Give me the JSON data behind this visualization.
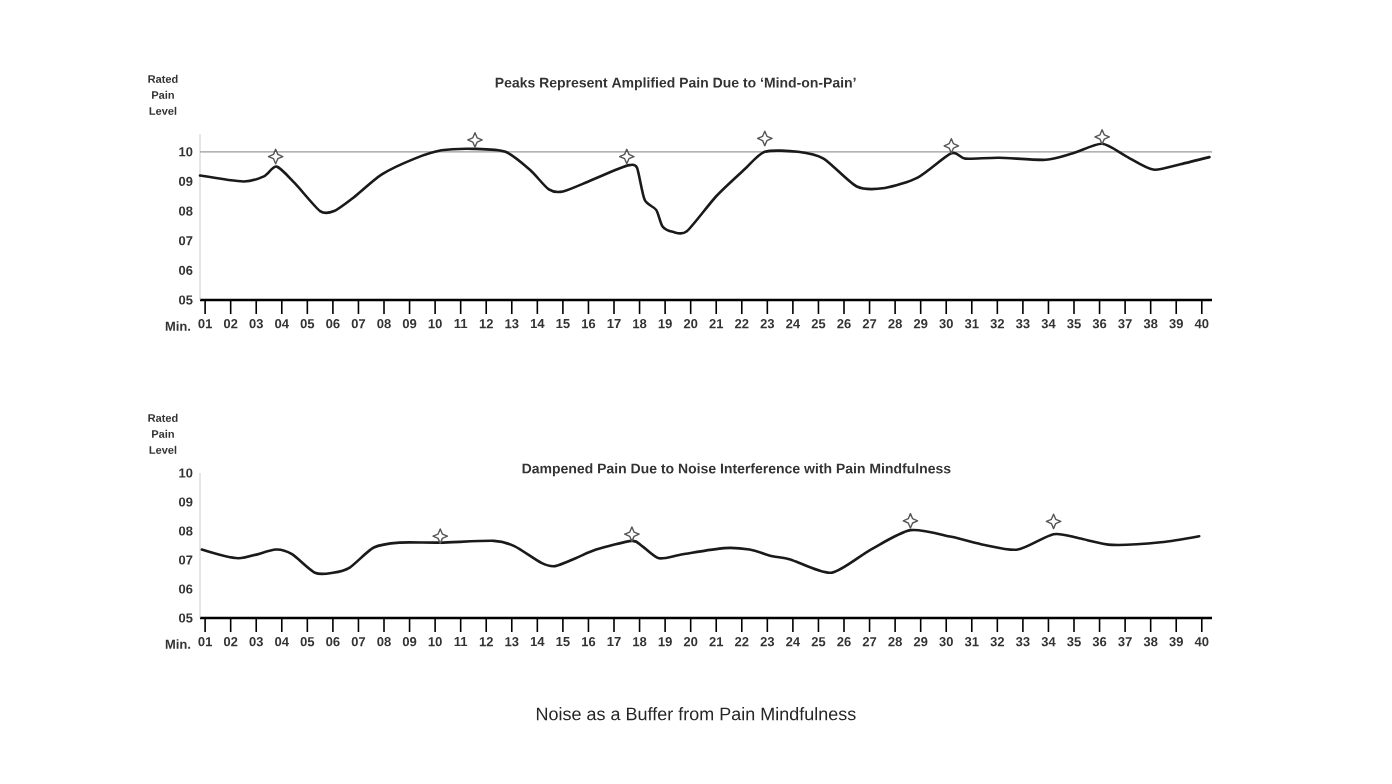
{
  "chart_data": [
    {
      "type": "line",
      "title": "Peaks Represent Amplified Pain Due to ‘Mind-on-Pain’",
      "xlabel": "Min.",
      "ylabel": "Rated Pain Level",
      "series": [
        {
          "color": "#1a1a1a",
          "line_style": "solid",
          "x": [
            0.8,
            2.5,
            3.3,
            3.8,
            4.5,
            5.5,
            6.05,
            6.8,
            7.9,
            9.2,
            10.25,
            11.55,
            12.75,
            13.7,
            14.45,
            15.0,
            16.0,
            17.1,
            17.6,
            17.9,
            18.2,
            18.65,
            18.9,
            19.3,
            19.85,
            21.0,
            22.1,
            22.9,
            24.2,
            25.2,
            26.5,
            27.6,
            28.9,
            30.2,
            30.75,
            32.06,
            33.9,
            34.96,
            36.1,
            37.06,
            38.1,
            39.16,
            40.3
          ],
          "values": [
            9.2,
            9.0,
            9.17,
            9.5,
            8.95,
            8.0,
            8.0,
            8.45,
            9.23,
            9.77,
            10.05,
            10.1,
            10.0,
            9.4,
            8.73,
            8.66,
            9.0,
            9.4,
            9.55,
            9.46,
            8.38,
            8.04,
            7.48,
            7.3,
            7.32,
            8.5,
            9.4,
            10.0,
            10.0,
            9.77,
            8.83,
            8.78,
            9.14,
            9.95,
            9.77,
            9.8,
            9.73,
            9.95,
            10.27,
            9.84,
            9.4,
            9.58,
            9.82
          ]
        },
        {
          "type": "scatter",
          "marker": "star",
          "color": "#555555",
          "x": [
            3.76,
            11.56,
            17.5,
            22.9,
            30.2,
            36.1
          ],
          "values": [
            9.84,
            10.4,
            9.84,
            10.45,
            10.2,
            10.5
          ]
        }
      ],
      "ref_lines": [
        {
          "axis": "y",
          "value": 10,
          "color": "#9a9a9a"
        }
      ],
      "xlim": [
        0.8,
        40.4
      ],
      "ylim": [
        5,
        10.6
      ],
      "xticks": [
        {
          "value": 1,
          "label": "01"
        },
        {
          "value": 2,
          "label": "02"
        },
        {
          "value": 3,
          "label": "03"
        },
        {
          "value": 4,
          "label": "04"
        },
        {
          "value": 5,
          "label": "05"
        },
        {
          "value": 6,
          "label": "06"
        },
        {
          "value": 7,
          "label": "07"
        },
        {
          "value": 8,
          "label": "08"
        },
        {
          "value": 9,
          "label": "09"
        },
        10,
        11,
        12,
        13,
        14,
        15,
        16,
        17,
        18,
        19,
        20,
        21,
        22,
        23,
        24,
        25,
        26,
        27,
        28,
        29,
        30,
        31,
        32,
        33,
        34,
        35,
        36,
        37,
        38,
        39,
        40
      ],
      "yticks": [
        {
          "value": 5,
          "label": "05"
        },
        {
          "value": 6,
          "label": "06"
        },
        {
          "value": 7,
          "label": "07"
        },
        {
          "value": 8,
          "label": "08"
        },
        {
          "value": 9,
          "label": "09"
        },
        10
      ]
    },
    {
      "type": "line",
      "title": "Dampened Pain Due to Noise Interference with Pain Mindfulness",
      "xlabel": "Min.",
      "ylabel": "Rated Pain Level",
      "series": [
        {
          "color": "#1a1a1a",
          "line_style": "solid",
          "x": [
            0.87,
            2.3,
            3.76,
            4.4,
            5.3,
            6.0,
            6.66,
            7.6,
            8.6,
            10.2,
            12.3,
            13.1,
            14.16,
            14.7,
            15.5,
            16.3,
            17.7,
            18.1,
            18.76,
            19.7,
            21.3,
            22.3,
            23.2,
            23.9,
            25.5,
            27.05,
            28.6,
            30.2,
            31.5,
            32.8,
            34.2,
            35.2,
            36.5,
            38.4,
            39.9
          ],
          "values": [
            7.36,
            7.06,
            7.36,
            7.2,
            6.56,
            6.56,
            6.74,
            7.43,
            7.6,
            7.6,
            7.66,
            7.48,
            6.9,
            6.79,
            7.06,
            7.36,
            7.66,
            7.48,
            7.06,
            7.2,
            7.41,
            7.36,
            7.13,
            7.02,
            6.56,
            7.36,
            8.03,
            7.8,
            7.52,
            7.36,
            7.89,
            7.75,
            7.52,
            7.61,
            7.82
          ]
        },
        {
          "type": "scatter",
          "marker": "star",
          "color": "#555555",
          "x": [
            10.2,
            17.7,
            28.6,
            34.2
          ],
          "values": [
            7.82,
            7.89,
            8.35,
            8.33
          ]
        }
      ],
      "annotations": [
        "Noise as a Buffer from Pain Mindfulness"
      ],
      "xlim": [
        0.8,
        40.4
      ],
      "ylim": [
        5,
        10
      ],
      "xticks": [
        {
          "value": 1,
          "label": "01"
        },
        {
          "value": 2,
          "label": "02"
        },
        {
          "value": 3,
          "label": "03"
        },
        {
          "value": 4,
          "label": "04"
        },
        {
          "value": 5,
          "label": "05"
        },
        {
          "value": 6,
          "label": "06"
        },
        {
          "value": 7,
          "label": "07"
        },
        {
          "value": 8,
          "label": "08"
        },
        {
          "value": 9,
          "label": "09"
        },
        10,
        11,
        12,
        13,
        14,
        15,
        16,
        17,
        18,
        19,
        20,
        21,
        22,
        23,
        24,
        25,
        26,
        27,
        28,
        29,
        30,
        31,
        32,
        33,
        34,
        35,
        36,
        37,
        38,
        39,
        40
      ],
      "yticks": [
        {
          "value": 5,
          "label": "05"
        },
        {
          "value": 6,
          "label": "06"
        },
        {
          "value": 7,
          "label": "07"
        },
        {
          "value": 8,
          "label": "08"
        },
        {
          "value": 9,
          "label": "09"
        },
        10
      ]
    }
  ]
}
